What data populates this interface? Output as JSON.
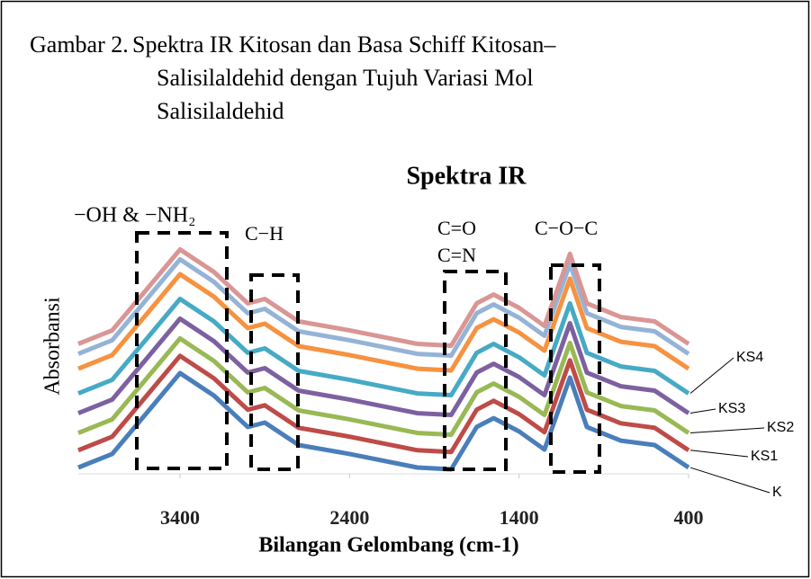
{
  "chart_data": {
    "type": "line",
    "caption_label": "Gambar 2.",
    "caption_lines": [
      "Spektra IR Kitosan dan Basa Schiff Kitosan–",
      "Salisilaldehid dengan Tujuh Variasi Mol",
      "Salisilaldehid"
    ],
    "title": "Spektra IR",
    "x_label": "Bilangan Gelombang (cm-1)",
    "y_label": "Absorbansi",
    "annotations": [
      "−OH & −NH₂",
      "C−H",
      "C=O",
      "C=N",
      "C−O−C"
    ],
    "xlim": [
      4000,
      400
    ],
    "xticks": [
      3400,
      2400,
      1400,
      400
    ],
    "ylim": [
      0,
      100
    ],
    "x": [
      4000,
      3800,
      3600,
      3400,
      3200,
      3000,
      2900,
      2700,
      2400,
      2000,
      1800,
      1650,
      1550,
      1400,
      1250,
      1100,
      1000,
      800,
      600,
      400
    ],
    "series": [
      {
        "name": "K",
        "color": "#4a7ebb",
        "values": [
          1.8,
          7.3,
          23.6,
          40,
          30.9,
          18.2,
          20,
          10.9,
          7.3,
          1.8,
          1.1,
          18.2,
          21.8,
          16.4,
          9.1,
          38.2,
          18.2,
          12.7,
          10.9,
          1.8
        ]
      },
      {
        "name": "KS1",
        "color": "#be4b48",
        "values": [
          8.8,
          14.3,
          30.6,
          47,
          37.9,
          25.2,
          27,
          17.9,
          14.3,
          8.8,
          8.1,
          25.2,
          28.8,
          23.4,
          16.1,
          45.2,
          25.2,
          19.7,
          17.9,
          8.8
        ]
      },
      {
        "name": "KS2",
        "color": "#98b954",
        "values": [
          15.8,
          21.3,
          37.6,
          54,
          44.9,
          32.2,
          34,
          24.9,
          21.3,
          15.8,
          15.1,
          32.2,
          35.8,
          30.4,
          23.1,
          52.2,
          32.2,
          26.7,
          24.9,
          15.8
        ]
      },
      {
        "name": "KS3",
        "color": "#7d60a0",
        "values": [
          23.8,
          29.3,
          45.6,
          62,
          52.9,
          40.2,
          42,
          32.9,
          29.3,
          23.8,
          23.1,
          40.2,
          43.8,
          38.4,
          31.1,
          60.2,
          40.2,
          34.7,
          32.9,
          23.8
        ]
      },
      {
        "name": "KS4",
        "color": "#46aac5",
        "values": [
          31.8,
          37.3,
          53.6,
          70,
          60.9,
          48.2,
          50,
          40.9,
          37.3,
          31.8,
          31.1,
          48.2,
          51.8,
          46.4,
          39.1,
          68.2,
          48.2,
          42.7,
          40.9,
          31.8
        ]
      },
      {
        "color": "#f69240",
        "values": [
          41.8,
          47.3,
          63.6,
          80,
          70.9,
          58.2,
          60,
          50.9,
          47.3,
          41.8,
          41.1,
          58.2,
          61.8,
          56.4,
          49.1,
          78.2,
          58.2,
          52.7,
          50.9,
          41.8
        ]
      },
      {
        "color": "#95b3d7",
        "values": [
          47.8,
          53.3,
          69.6,
          86,
          76.9,
          64.2,
          66,
          56.9,
          53.3,
          47.8,
          47.1,
          64.2,
          67.8,
          62.4,
          55.1,
          84.2,
          64.2,
          58.7,
          56.9,
          47.8
        ]
      },
      {
        "color": "#d99694",
        "values": [
          51.8,
          57.3,
          73.6,
          90,
          80.9,
          68.2,
          70,
          60.9,
          57.3,
          51.8,
          51.1,
          68.2,
          71.8,
          66.4,
          59.1,
          88.2,
          68.2,
          62.7,
          60.9,
          51.8
        ]
      }
    ]
  }
}
